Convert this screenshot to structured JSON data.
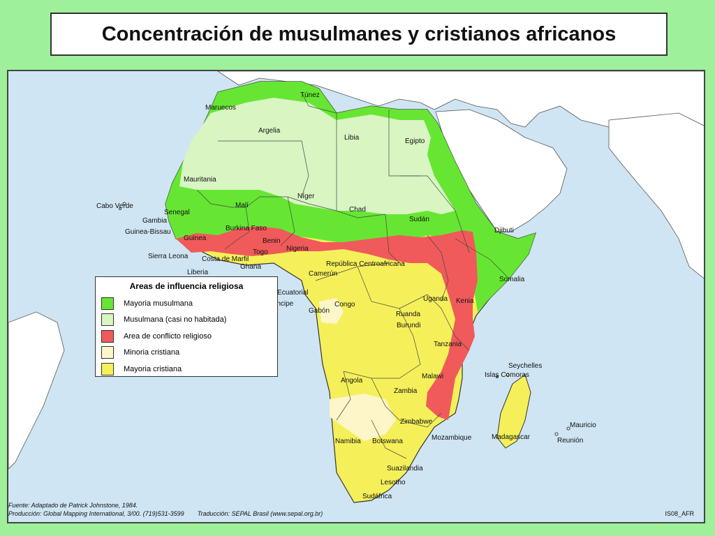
{
  "title": "Concentración de musulmanes y cristianos africanos",
  "colors": {
    "ocean": "#cfe5f3",
    "muslim_majority": "#66e633",
    "muslim_sparse": "#d8f5c2",
    "conflict": "#f05a5a",
    "christian_minority": "#fdf6c8",
    "christian_majority": "#f5f05a",
    "frame_background": "#9ef09a"
  },
  "legend": {
    "title": "Areas de influencia religiosa",
    "items": [
      {
        "label": "Mayoria musulmana",
        "color": "#66e633"
      },
      {
        "label": "Musulmana (casi no habitada)",
        "color": "#d8f5c2"
      },
      {
        "label": "Area de conflicto religioso",
        "color": "#f05a5a"
      },
      {
        "label": "Minoria cristiana",
        "color": "#fdf6c8"
      },
      {
        "label": "Mayoria cristiana",
        "color": "#f5f05a"
      }
    ]
  },
  "countries": [
    "Túnez",
    "Maruecos",
    "Argelia",
    "Libia",
    "Egipto",
    "Mauritania",
    "Níger",
    "Malí",
    "Chad",
    "Cabo Verde",
    "Senegal",
    "Gambia",
    "Sudán",
    "Guinea-Bissau",
    "Burkina Faso",
    "Djibuti",
    "Guinea",
    "Benin",
    "Nigeria",
    "Sierra Leona",
    "Togo",
    "Costa de Marfil",
    "Ghana",
    "República Centroafricana",
    "Liberia",
    "Camerún",
    "Somalia",
    "Guinea Ecuatorial",
    "Uganda",
    "Kenia",
    "Santo Tomé e Puerto Príncipe",
    "Congo",
    "Gabón",
    "Ruanda",
    "Burundi",
    "Tanzania",
    "Seychelles",
    "Malawi",
    "Islas Comoras",
    "Angola",
    "Zambia",
    "Zimbabwe",
    "Mauricio",
    "Madagascar",
    "Mozambique",
    "Reunión",
    "Namibia",
    "Botswana",
    "Suazilandia",
    "Lesotho",
    "Sudáfrica"
  ],
  "footer": {
    "source": "Fuente: Adaptado de Patrick Johnstone, 1984.",
    "production": "Producción: Global Mapping International, 3/00. (719)531-3599",
    "translation": "Traducción: SEPAL Brasil (www.sepal.org.br)",
    "code": "IS08_AFR"
  }
}
